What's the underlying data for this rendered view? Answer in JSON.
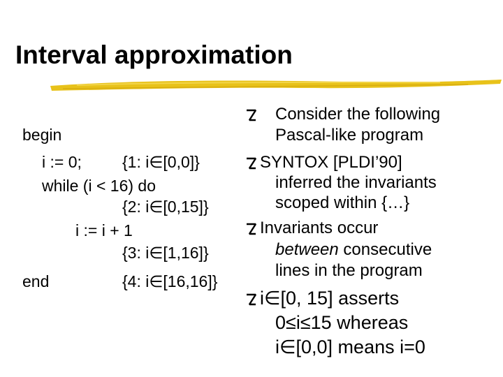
{
  "slide": {
    "title": "Interval approximation",
    "code": [
      "begin",
      "i := 0;",
      "{1: i∈[0,0]}",
      "while (i < 16) do",
      "{2: i∈[0,15]}",
      "i := i + 1",
      "{3: i∈[1,16]}",
      "end",
      "{4: i∈[16,16]}"
    ],
    "bullets": [
      {
        "lines": [
          "Consider the following",
          "Pascal-like program"
        ]
      },
      {
        "lines": [
          "SYNTOX [PLDI’90]",
          "inferred the invariants",
          "scoped within {…}"
        ]
      },
      {
        "lines": [
          "Invariants occur",
          "consecutive",
          "lines in the program"
        ],
        "emphasis": "between"
      },
      {
        "lines": [
          "i∈[0, 15] asserts",
          "0≤i≤15 whereas",
          "i∈[0,0] means i=0"
        ]
      }
    ],
    "colors": {
      "rule": "#e8c21a",
      "bullet_glyph": "#000000"
    },
    "icon": "z-bullet-icon"
  }
}
